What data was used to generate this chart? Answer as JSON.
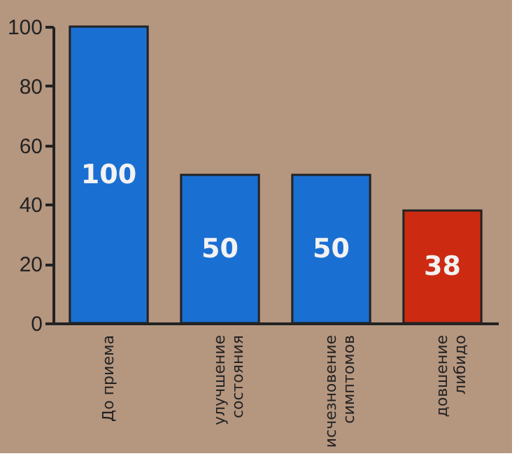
{
  "chart_data": {
    "type": "bar",
    "categories": [
      "До приема",
      "улучшение\nсостояния",
      "исчезновение\nсимптомов",
      "довшение\nлибидо"
    ],
    "values": [
      100,
      50,
      50,
      38
    ],
    "colors": [
      "#1a6fd2",
      "#1a6fd2",
      "#1a6fd2",
      "#cc2b12"
    ],
    "ylim": [
      0,
      100
    ],
    "yticks": [
      0,
      20,
      40,
      60,
      80,
      100
    ],
    "grid": false,
    "data_labels": true
  }
}
